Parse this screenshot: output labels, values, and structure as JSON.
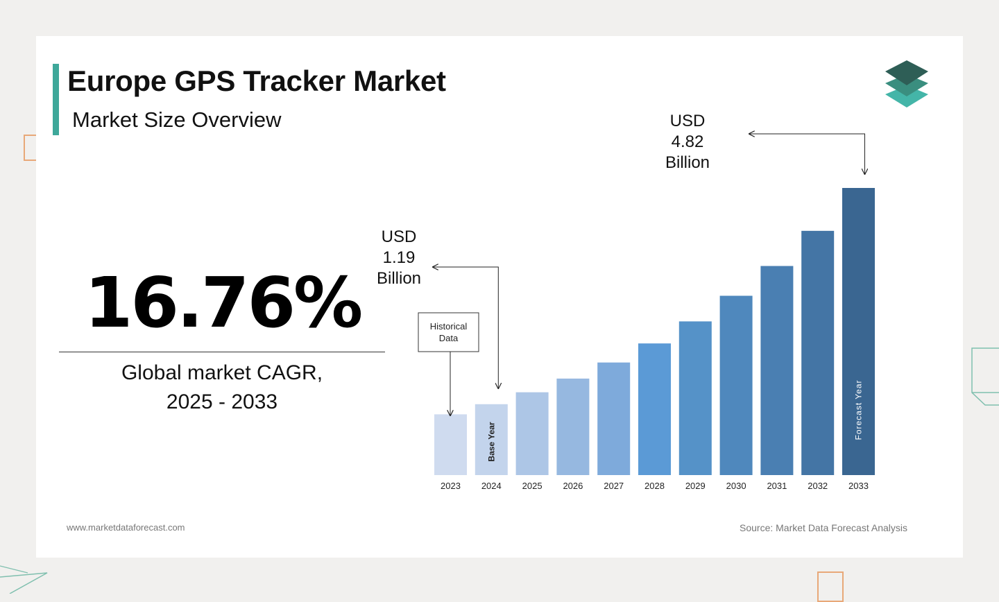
{
  "header": {
    "title": "Europe GPS Tracker Market",
    "subtitle": "Market Size Overview"
  },
  "cagr": {
    "value": "16.76%",
    "label_line1": "Global market CAGR,",
    "label_line2": "2025 - 2033"
  },
  "footer": {
    "website": "www.marketdataforecast.com",
    "source": "Source: Market Data Forecast Analysis"
  },
  "logo": {
    "icon": "layers-stack-icon",
    "colors": [
      "#2e5e56",
      "#3a8e7f",
      "#44b5a8"
    ]
  },
  "chart_data": {
    "type": "bar",
    "categories": [
      "2023",
      "2024",
      "2025",
      "2026",
      "2027",
      "2028",
      "2029",
      "2030",
      "2031",
      "2032",
      "2033"
    ],
    "values": [
      1.02,
      1.19,
      1.39,
      1.62,
      1.89,
      2.21,
      2.58,
      3.01,
      3.51,
      4.1,
      4.82
    ],
    "colors": [
      "#cfdbef",
      "#c3d4ec",
      "#adc6e6",
      "#96b8e0",
      "#7eaadb",
      "#5b9ad6",
      "#5592c8",
      "#4f88bd",
      "#4a7fb2",
      "#4475a5",
      "#3a6691"
    ],
    "ylim": [
      0,
      4.82
    ],
    "annotations": {
      "historical": "Historical\nData",
      "base_year": "Base Year",
      "forecast_year": "Forecast Year",
      "callout_2024": [
        "USD",
        "1.19",
        "Billion"
      ],
      "callout_2033": [
        "USD",
        "4.82",
        "Billion"
      ]
    }
  }
}
